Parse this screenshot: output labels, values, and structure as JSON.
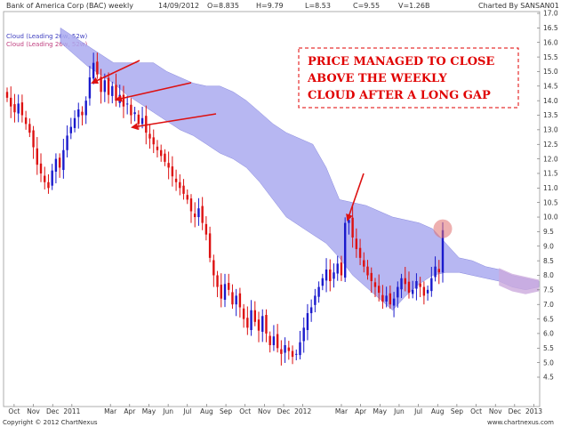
{
  "header": {
    "title": "Bank of America Corp (BAC) weekly",
    "date": "14/09/2012",
    "open": "O=8.835",
    "high": "H=9.79",
    "low": "L=8.53",
    "close": "C=9.55",
    "volume": "V=1.26B",
    "charted_by": "Charted By SANSAN01"
  },
  "legend": [
    {
      "label": "Cloud (Leading 26w, 52w)",
      "color": "#4040c0"
    },
    {
      "label": "Cloud (Leading 26w, 52w)",
      "color": "#c04080"
    }
  ],
  "footer": {
    "copyright": "Copyright © 2012 ChartNexus",
    "site": "www.chartnexus.com"
  },
  "colors": {
    "up": "#1a1acc",
    "down": "#dd1111",
    "cloud": "#aaaaf0",
    "cloud_bearish": "#ccaadd",
    "arrow": "#dd1111",
    "annotation": "#e00000"
  },
  "chart_data": {
    "type": "candlestick",
    "ylim": [
      4.5,
      17.0
    ],
    "y_ticks": [
      "4.5",
      "5.0",
      "5.5",
      "6.0",
      "6.5",
      "7.0",
      "7.5",
      "8.0",
      "8.5",
      "9.0",
      "9.5",
      "10.0",
      "10.5",
      "11.0",
      "11.5",
      "12.0",
      "12.5",
      "13.0",
      "13.5",
      "14.0",
      "14.5",
      "15.0",
      "15.5",
      "16.0",
      "16.5",
      "17.0"
    ],
    "x_ticks": [
      "Oct",
      "Nov",
      "Dec",
      "2011",
      "Mar",
      "Apr",
      "May",
      "Jun",
      "Jul",
      "Aug",
      "Sep",
      "Oct",
      "Nov",
      "Dec",
      "2012",
      "Mar",
      "Apr",
      "May",
      "Jun",
      "Jul",
      "Aug",
      "Sep",
      "Oct",
      "Nov",
      "Dec",
      "2013"
    ],
    "x_tick_months": [
      0,
      1,
      2,
      3,
      5,
      6,
      7,
      8,
      9,
      10,
      11,
      12,
      13,
      14,
      15,
      17,
      18,
      19,
      20,
      21,
      22,
      23,
      24,
      25,
      26,
      27
    ],
    "month_range": [
      -0.55,
      27.3
    ],
    "closes": [
      14.1,
      13.8,
      13.6,
      13.9,
      13.5,
      13.2,
      12.9,
      12.4,
      11.8,
      11.5,
      11.2,
      11.0,
      11.6,
      12.0,
      11.7,
      12.3,
      12.8,
      13.1,
      13.4,
      13.7,
      13.5,
      14.0,
      14.8,
      15.3,
      14.9,
      14.3,
      14.7,
      14.2,
      14.5,
      14.0,
      14.2,
      13.8,
      13.9,
      13.5,
      13.6,
      13.2,
      13.4,
      12.9,
      12.7,
      12.5,
      12.3,
      12.1,
      11.9,
      11.7,
      11.4,
      11.2,
      11.0,
      10.8,
      10.6,
      10.2,
      10.0,
      10.3,
      9.8,
      9.4,
      8.6,
      8.0,
      7.6,
      7.2,
      7.7,
      7.5,
      7.0,
      7.3,
      6.9,
      6.5,
      6.2,
      6.8,
      6.4,
      6.1,
      6.6,
      6.0,
      5.6,
      5.9,
      5.5,
      5.3,
      5.6,
      5.4,
      5.2,
      5.3,
      5.7,
      6.2,
      6.7,
      6.9,
      7.3,
      7.6,
      7.9,
      8.2,
      7.8,
      8.1,
      8.4,
      8.0,
      9.8,
      9.9,
      9.3,
      8.9,
      8.6,
      8.3,
      8.0,
      7.8,
      7.6,
      7.4,
      7.1,
      7.3,
      7.0,
      7.2,
      7.6,
      7.9,
      7.7,
      7.4,
      7.5,
      7.8,
      7.6,
      7.3,
      7.5,
      7.9,
      8.3,
      8.1,
      9.55
    ],
    "cloud_upper": [
      16.5,
      16.2,
      15.9,
      15.6,
      15.3,
      15.3,
      15.3,
      15.3,
      15.0,
      14.8,
      14.6,
      14.5,
      14.5,
      14.3,
      14.0,
      13.6,
      13.2,
      12.9,
      12.7,
      12.5,
      11.7,
      10.6,
      10.5,
      10.4,
      10.2,
      10.0,
      9.9,
      9.8,
      9.6,
      9.1,
      8.6,
      8.5,
      8.3,
      8.2,
      8.0,
      7.9,
      7.8
    ],
    "cloud_lower": [
      16.0,
      15.6,
      15.2,
      14.9,
      14.6,
      14.2,
      13.9,
      13.6,
      13.3,
      13.0,
      12.8,
      12.5,
      12.2,
      12.0,
      11.7,
      11.2,
      10.6,
      10.0,
      9.7,
      9.4,
      9.1,
      8.6,
      8.0,
      7.6,
      7.2,
      6.8,
      7.3,
      7.7,
      8.0,
      8.1,
      8.1,
      8.0,
      7.9,
      7.8,
      7.6,
      7.5,
      7.6
    ],
    "annotations": [
      {
        "text": "PRICE MANAGED TO CLOSE",
        "line": 1
      },
      {
        "text": "ABOVE THE WEEKLY",
        "line": 2
      },
      {
        "text": "CLOUD AFTER A LONG GAP",
        "line": 3
      }
    ]
  }
}
